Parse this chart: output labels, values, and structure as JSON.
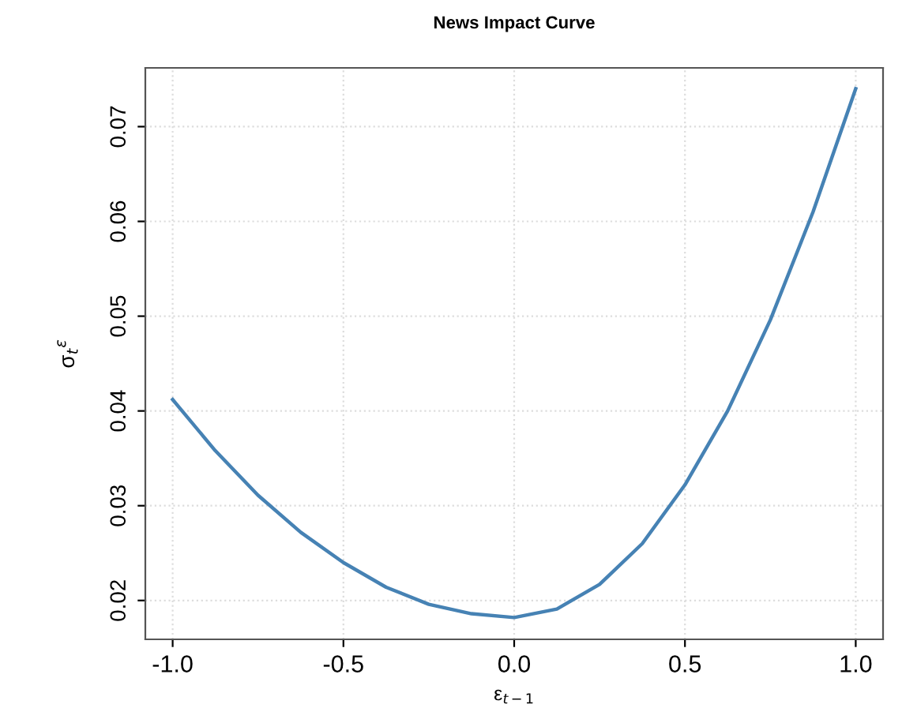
{
  "chart_data": {
    "type": "line",
    "title": "News Impact Curve",
    "xlabel": "ε$_{t−1}$",
    "ylabel": "σ$_{t}$$^{ε}$",
    "x": [
      -1,
      -0.875,
      -0.75,
      -0.625,
      -0.5,
      -0.375,
      -0.25,
      -0.125,
      0,
      0.125,
      0.25,
      0.375,
      0.5,
      0.625,
      0.75,
      0.875,
      1
    ],
    "series": [
      {
        "color": "#4682b4",
        "values": [
          0.0412,
          0.0358,
          0.0311,
          0.0272,
          0.024,
          0.0214,
          0.0196,
          0.0186,
          0.0182,
          0.0191,
          0.0217,
          0.026,
          0.0322,
          0.04,
          0.0496,
          0.061,
          0.074
        ]
      }
    ],
    "xlim": [
      -1.08,
      1.08
    ],
    "ylim": [
      0.0159,
      0.0762
    ],
    "xticks": [
      {
        "value": -1,
        "label": "-1.0"
      },
      {
        "value": -0.5,
        "label": "-0.5"
      },
      {
        "value": 0,
        "label": "0.0"
      },
      {
        "value": 0.5,
        "label": "0.5"
      },
      {
        "value": 1,
        "label": "1.0"
      }
    ],
    "yticks": [
      0.02,
      0.03,
      0.04,
      0.05,
      0.06,
      0.07
    ],
    "grid": true,
    "line_style": "solid",
    "marker": "none",
    "legend": false
  }
}
